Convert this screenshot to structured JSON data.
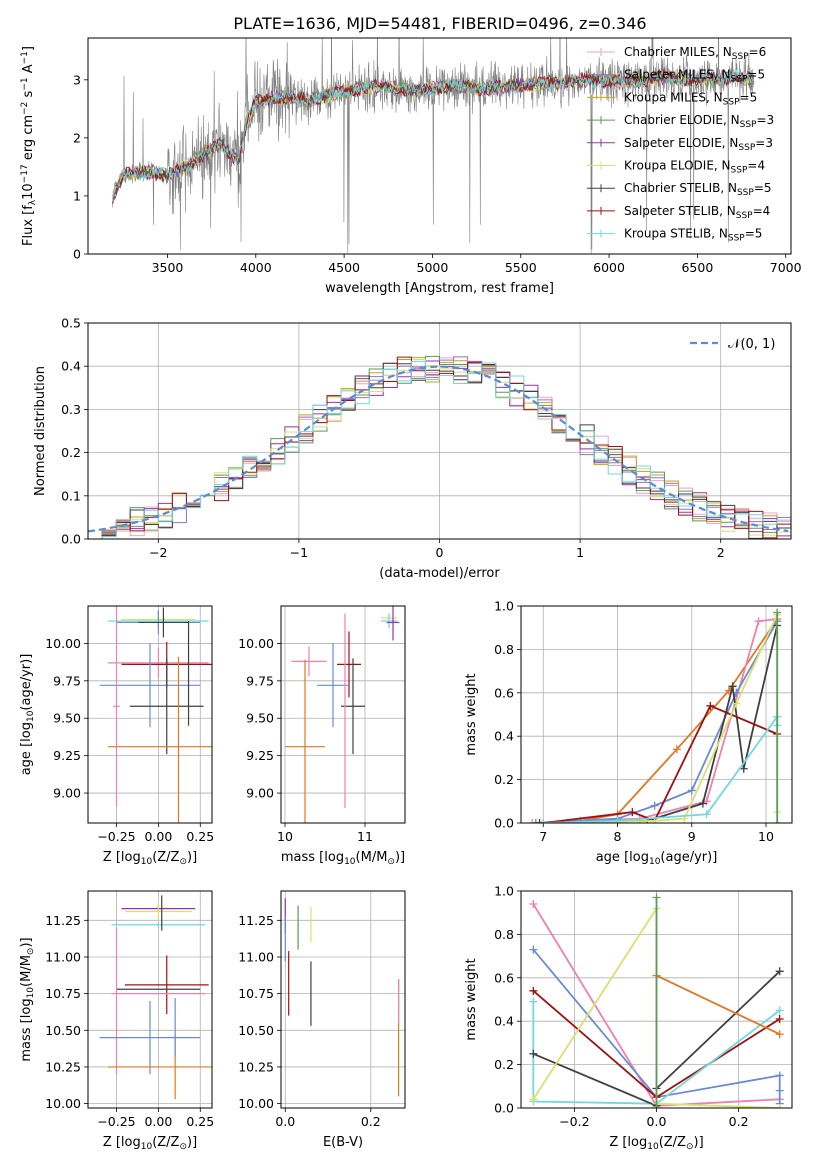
{
  "figure": {
    "title": "PLATE=1636, MJD=54481, FIBERID=0496, z=0.346"
  },
  "legend_spectrum": [
    {
      "label": "Chabrier MILES, N",
      "sub": "SSP",
      "suffix": "=6",
      "color": "#f0a0c8"
    },
    {
      "label": "Salpeter MILES, N",
      "sub": "SSP",
      "suffix": "=5",
      "color": "#9b6fbf"
    },
    {
      "label": "Kroupa MILES, N",
      "sub": "SSP",
      "suffix": "=5",
      "color": "#c8a020"
    },
    {
      "label": "Chabrier ELODIE, N",
      "sub": "SSP",
      "suffix": "=3",
      "color": "#5a9a5a"
    },
    {
      "label": "Salpeter ELODIE, N",
      "sub": "SSP",
      "suffix": "=3",
      "color": "#9a30b0"
    },
    {
      "label": "Kroupa ELODIE, N",
      "sub": "SSP",
      "suffix": "=4",
      "color": "#d8e070"
    },
    {
      "label": "Chabrier STELIB, N",
      "sub": "SSP",
      "suffix": "=5",
      "color": "#404040"
    },
    {
      "label": "Salpeter STELIB, N",
      "sub": "SSP",
      "suffix": "=4",
      "color": "#a01010"
    },
    {
      "label": "Kroupa STELIB, N",
      "sub": "SSP",
      "suffix": "=5",
      "color": "#70d8e0"
    }
  ],
  "legend_hist": {
    "label": "𝒩(0, 1)",
    "color": "#5b8ad8"
  },
  "chart_data": [
    {
      "id": "spectrum",
      "type": "line",
      "xlabel": "wavelength [Angstrom, rest frame]",
      "ylabel_main": "Flux [f",
      "ylabel_sub": "λ",
      "ylabel_rest": "10",
      "ylabel_sup": "−17",
      "ylabel_tail": " erg cm",
      "ylabel_sup2": "−2",
      "ylabel_tail2": " s",
      "ylabel_sup3": "−1",
      "ylabel_tail3": " A",
      "ylabel_sup4": "−1",
      "ylabel_end": "]",
      "xlim": [
        3050,
        7030
      ],
      "ylim": [
        0,
        3.72
      ],
      "xticks": [
        "3500",
        "4000",
        "4500",
        "5000",
        "5500",
        "6000",
        "6500",
        "7000"
      ],
      "xtick_values": [
        3500,
        4000,
        4500,
        5000,
        5500,
        6000,
        6500,
        7000
      ],
      "yticks": [
        "0",
        "1",
        "2",
        "3"
      ],
      "ytick_values": [
        0,
        1,
        2,
        3
      ],
      "data_range": [
        3190,
        6820
      ],
      "continuum": [
        [
          3190,
          1.0
        ],
        [
          3250,
          1.35
        ],
        [
          3300,
          1.38
        ],
        [
          3400,
          1.42
        ],
        [
          3500,
          1.35
        ],
        [
          3600,
          1.5
        ],
        [
          3700,
          1.7
        ],
        [
          3800,
          1.9
        ],
        [
          3900,
          1.6
        ],
        [
          3950,
          2.3
        ],
        [
          4000,
          2.6
        ],
        [
          4100,
          2.7
        ],
        [
          4300,
          2.65
        ],
        [
          4500,
          2.8
        ],
        [
          4700,
          2.9
        ],
        [
          4900,
          2.8
        ],
        [
          5100,
          2.9
        ],
        [
          5300,
          2.85
        ],
        [
          5500,
          2.9
        ],
        [
          5700,
          2.95
        ],
        [
          5900,
          3.0
        ],
        [
          6100,
          2.95
        ],
        [
          6300,
          3.05
        ],
        [
          6500,
          3.0
        ],
        [
          6700,
          3.05
        ],
        [
          6820,
          3.0
        ]
      ]
    },
    {
      "id": "residuals",
      "type": "bar",
      "xlabel": "(data-model)/error",
      "ylabel": "Normed distribution",
      "xlim": [
        -2.5,
        2.5
      ],
      "ylim": [
        0,
        0.5
      ],
      "xticks": [
        "−2",
        "−1",
        "0",
        "1",
        "2"
      ],
      "xtick_values": [
        -2,
        -1,
        0,
        1,
        2
      ],
      "yticks": [
        "0.0",
        "0.1",
        "0.2",
        "0.3",
        "0.4",
        "0.5"
      ],
      "ytick_values": [
        0,
        0.1,
        0.2,
        0.3,
        0.4,
        0.5
      ],
      "bin_width": 0.1,
      "gaussian": {
        "mu": 0,
        "sigma": 1
      }
    },
    {
      "id": "age-Z",
      "type": "scatter",
      "xlabel": "Z [log",
      "xlabel_sub": "10",
      "xlabel_rest": "(Z/Z",
      "xlabel_sub2": "⊙",
      "xlabel_end": ")]",
      "ylabel": "age  [log",
      "ylabel_sub": "10",
      "ylabel_rest": "(age/yr)]",
      "xlim": [
        -0.42,
        0.32
      ],
      "ylim": [
        8.8,
        10.25
      ],
      "xticks": [
        "−0.25",
        "0.00",
        "0.25"
      ],
      "xtick_values": [
        -0.25,
        0,
        0.25
      ],
      "yticks": [
        "9.00",
        "9.25",
        "9.50",
        "9.75",
        "10.00"
      ],
      "ytick_values": [
        9,
        9.25,
        9.5,
        9.75,
        10
      ],
      "points": [
        {
          "x": 0.0,
          "y": 10.15,
          "xerr": 0.3,
          "yerr": 0.05,
          "color": "#70d8e0"
        },
        {
          "x": 0.0,
          "y": 10.16,
          "xerr": 0.22,
          "yerr": 0.05,
          "color": "#d8e070"
        },
        {
          "x": 0.0,
          "y": 10.14,
          "xerr": 0.25,
          "yerr": 0.08,
          "color": "#6a8ad8"
        },
        {
          "x": 0.03,
          "y": 10.14,
          "xerr": 0.15,
          "yerr": 0.1,
          "color": "#404040"
        },
        {
          "x": 0.0,
          "y": 9.87,
          "xerr": 0.3,
          "yerr": 0.1,
          "color": "#f080b0"
        },
        {
          "x": 0.05,
          "y": 9.86,
          "xerr": 0.27,
          "yerr": 0.15,
          "color": "#a01010"
        },
        {
          "x": -0.05,
          "y": 9.72,
          "xerr": 0.3,
          "yerr": 0.28,
          "color": "#6a8ad8"
        },
        {
          "x": 0.05,
          "y": 9.58,
          "xerr": 0.22,
          "yerr": 0.32,
          "color": "#404040"
        },
        {
          "x": 0.12,
          "y": 9.31,
          "xerr": 0.42,
          "yerr": 0.6,
          "color": "#e07820"
        },
        {
          "x": -0.25,
          "y": 9.58,
          "xerr": 0.02,
          "yerr": 0.67,
          "color": "#f080b0"
        },
        {
          "x": 0.18,
          "y": 9.8,
          "xerr": 0.0,
          "yerr": 0.35,
          "color": "#404040"
        }
      ]
    },
    {
      "id": "age-mass",
      "type": "scatter",
      "xlabel": "mass [log",
      "xlabel_sub": "10",
      "xlabel_rest": "(M/M",
      "xlabel_sub2": "⊙",
      "xlabel_end": ")]",
      "xlim": [
        9.95,
        11.5
      ],
      "ylim": [
        8.8,
        10.25
      ],
      "xticks": [
        "10",
        "11"
      ],
      "xtick_values": [
        10,
        11
      ],
      "yticks": [
        "9.00",
        "9.25",
        "9.50",
        "9.75",
        "10.00"
      ],
      "ytick_values": [
        9,
        9.25,
        9.5,
        9.75,
        10
      ],
      "points": [
        {
          "x": 11.3,
          "y": 10.17,
          "xerr": 0.1,
          "yerr": 0.03,
          "color": "#d8e070"
        },
        {
          "x": 11.3,
          "y": 10.15,
          "xerr": 0.1,
          "yerr": 0.05,
          "color": "#70d8e0"
        },
        {
          "x": 11.35,
          "y": 10.14,
          "xerr": 0.08,
          "yerr": 0.12,
          "color": "#9a30b0"
        },
        {
          "x": 10.3,
          "y": 9.88,
          "xerr": 0.22,
          "yerr": 0.1,
          "color": "#f080b0"
        },
        {
          "x": 10.8,
          "y": 9.86,
          "xerr": 0.15,
          "yerr": 0.22,
          "color": "#a01010"
        },
        {
          "x": 10.6,
          "y": 9.72,
          "xerr": 0.2,
          "yerr": 0.28,
          "color": "#6a8ad8"
        },
        {
          "x": 10.85,
          "y": 9.58,
          "xerr": 0.15,
          "yerr": 0.32,
          "color": "#404040"
        },
        {
          "x": 10.25,
          "y": 9.31,
          "xerr": 0.25,
          "yerr": 0.58,
          "color": "#e07820"
        },
        {
          "x": 10.75,
          "y": 9.55,
          "xerr": 0.0,
          "yerr": 0.65,
          "color": "#f080b0"
        }
      ]
    },
    {
      "id": "weight-age",
      "type": "line",
      "xlabel": "age  [log",
      "xlabel_sub": "10",
      "xlabel_rest": "(age/yr)]",
      "ylabel": "mass weight",
      "xlim": [
        6.7,
        10.35
      ],
      "ylim": [
        0,
        1.0
      ],
      "xticks": [
        "7",
        "8",
        "9",
        "10"
      ],
      "xtick_values": [
        7,
        8,
        9,
        10
      ],
      "yticks": [
        "0.0",
        "0.2",
        "0.4",
        "0.6",
        "0.8",
        "1.0"
      ],
      "ytick_values": [
        0,
        0.2,
        0.4,
        0.6,
        0.8,
        1.0
      ],
      "series": [
        {
          "color": "#e07820",
          "x": [
            6.9,
            7.5,
            8.0,
            8.8,
            9.5,
            10.15
          ],
          "y": [
            0.0,
            0.01,
            0.04,
            0.34,
            0.61,
            0.94
          ]
        },
        {
          "color": "#f080b0",
          "x": [
            6.85,
            7.5,
            8.3,
            9.2,
            9.9,
            10.15
          ],
          "y": [
            0.0,
            0.01,
            0.02,
            0.1,
            0.93,
            0.94
          ]
        },
        {
          "color": "#6a8ad8",
          "x": [
            6.9,
            8.0,
            8.5,
            9.0,
            9.6,
            10.15
          ],
          "y": [
            0.0,
            0.02,
            0.08,
            0.15,
            0.6,
            0.93
          ]
        },
        {
          "color": "#404040",
          "x": [
            6.95,
            8.4,
            9.15,
            9.55,
            9.7,
            10.15
          ],
          "y": [
            0.0,
            0.01,
            0.09,
            0.63,
            0.25,
            0.91
          ]
        },
        {
          "color": "#a01010",
          "x": [
            7.0,
            8.2,
            8.5,
            9.25,
            10.15
          ],
          "y": [
            0.0,
            0.05,
            0.01,
            0.54,
            0.41
          ]
        },
        {
          "color": "#d8e070",
          "x": [
            7.0,
            8.5,
            8.9,
            9.6,
            10.15,
            10.15
          ],
          "y": [
            0.0,
            0.01,
            0.02,
            0.55,
            0.96,
            0.05
          ]
        },
        {
          "color": "#70d8e0",
          "x": [
            7.0,
            8.0,
            9.2,
            10.15,
            10.15
          ],
          "y": [
            0.0,
            0.01,
            0.04,
            0.49,
            0.45
          ]
        },
        {
          "color": "#5a9a5a",
          "x": [
            10.15,
            10.15
          ],
          "y": [
            0.0,
            0.97
          ]
        }
      ]
    },
    {
      "id": "mass-Z",
      "type": "scatter",
      "xlabel": "Z [log",
      "xlabel_sub": "10",
      "xlabel_rest": "(Z/Z",
      "xlabel_sub2": "⊙",
      "xlabel_end": ")]",
      "ylabel": "mass [log",
      "ylabel_sub": "10",
      "ylabel_rest": "(M/M",
      "ylabel_sub2": "⊙",
      "ylabel_end": ")]",
      "xlim": [
        -0.42,
        0.32
      ],
      "ylim": [
        9.97,
        11.45
      ],
      "xticks": [
        "−0.25",
        "0.00",
        "0.25"
      ],
      "xtick_values": [
        -0.25,
        0,
        0.25
      ],
      "yticks": [
        "10.00",
        "10.25",
        "10.50",
        "10.75",
        "11.00",
        "11.25"
      ],
      "ytick_values": [
        10,
        10.25,
        10.5,
        10.75,
        11,
        11.25
      ],
      "points": [
        {
          "x": 0.0,
          "y": 11.33,
          "xerr": 0.22,
          "yerr": 0.02,
          "color": "#9a30b0"
        },
        {
          "x": 0.0,
          "y": 11.31,
          "xerr": 0.2,
          "yerr": 0.08,
          "color": "#d8e070"
        },
        {
          "x": 0.0,
          "y": 11.22,
          "xerr": 0.28,
          "yerr": 0.02,
          "color": "#70d8e0"
        },
        {
          "x": 0.02,
          "y": 11.3,
          "xerr": 0.0,
          "yerr": 0.12,
          "color": "#404040"
        },
        {
          "x": 0.05,
          "y": 10.81,
          "xerr": 0.25,
          "yerr": 0.2,
          "color": "#a01010"
        },
        {
          "x": 0.0,
          "y": 10.78,
          "xerr": 0.25,
          "yerr": 0.0,
          "color": "#404040"
        },
        {
          "x": 0.0,
          "y": 10.75,
          "xerr": 0.28,
          "yerr": 0.0,
          "color": "#f080b0"
        },
        {
          "x": -0.25,
          "y": 10.7,
          "xerr": 0.0,
          "yerr": 0.5,
          "color": "#f080b0"
        },
        {
          "x": -0.05,
          "y": 10.45,
          "xerr": 0.3,
          "yerr": 0.25,
          "color": "#6a8ad8"
        },
        {
          "x": 0.1,
          "y": 10.25,
          "xerr": 0.4,
          "yerr": 0.22,
          "color": "#e07820"
        },
        {
          "x": 0.1,
          "y": 10.52,
          "xerr": 0.0,
          "yerr": 0.2,
          "color": "#6a8ad8"
        }
      ]
    },
    {
      "id": "mass-EBV",
      "type": "scatter",
      "xlabel": "E(B-V)",
      "xlim": [
        -0.01,
        0.28
      ],
      "ylim": [
        9.97,
        11.45
      ],
      "xticks": [
        "0.0",
        "0.2"
      ],
      "xtick_values": [
        0,
        0.2
      ],
      "yticks": [
        "10.00",
        "10.25",
        "10.50",
        "10.75",
        "11.00",
        "11.25"
      ],
      "ytick_values": [
        10,
        10.25,
        10.5,
        10.75,
        11,
        11.25
      ],
      "points": [
        {
          "x": 0.0,
          "y": 11.28,
          "xerr": 0,
          "yerr": 0.12,
          "color": "#9a30b0"
        },
        {
          "x": 0.0,
          "y": 11.12,
          "xerr": 0,
          "yerr": 0.15,
          "color": "#6a8ad8"
        },
        {
          "x": 0.008,
          "y": 10.82,
          "xerr": 0,
          "yerr": 0.22,
          "color": "#a01010"
        },
        {
          "x": 0.03,
          "y": 11.2,
          "xerr": 0,
          "yerr": 0.15,
          "color": "#5a9a5a"
        },
        {
          "x": 0.06,
          "y": 11.22,
          "xerr": 0,
          "yerr": 0.12,
          "color": "#d8e070"
        },
        {
          "x": 0.06,
          "y": 10.75,
          "xerr": 0,
          "yerr": 0.22,
          "color": "#404040"
        },
        {
          "x": 0.265,
          "y": 10.45,
          "xerr": 0,
          "yerr": 0.4,
          "color": "#e07820"
        },
        {
          "x": 0.265,
          "y": 10.7,
          "xerr": 0,
          "yerr": 0.15,
          "color": "#f080b0"
        }
      ]
    },
    {
      "id": "weight-Z",
      "type": "line",
      "xlabel": "Z [log",
      "xlabel_sub": "10",
      "xlabel_rest": "(Z/Z",
      "xlabel_sub2": "⊙",
      "xlabel_end": ")]",
      "ylabel": "mass weight",
      "xlim": [
        -0.33,
        0.33
      ],
      "ylim": [
        0,
        1.0
      ],
      "xticks": [
        "−0.2",
        "0.0",
        "0.2"
      ],
      "xtick_values": [
        -0.2,
        0,
        0.2
      ],
      "yticks": [
        "0.0",
        "0.2",
        "0.4",
        "0.6",
        "0.8",
        "1.0"
      ],
      "ytick_values": [
        0,
        0.2,
        0.4,
        0.6,
        0.8,
        1.0
      ],
      "series": [
        {
          "color": "#f080b0",
          "x": [
            -0.3,
            0.0,
            0.3
          ],
          "y": [
            0.94,
            0.01,
            0.04
          ]
        },
        {
          "color": "#6a8ad8",
          "x": [
            -0.3,
            0.0,
            0.3,
            0.3,
            0.3
          ],
          "y": [
            0.73,
            0.05,
            0.15,
            0.08,
            0.02
          ]
        },
        {
          "color": "#a01010",
          "x": [
            -0.3,
            0.0,
            0.3
          ],
          "y": [
            0.54,
            0.05,
            0.41
          ]
        },
        {
          "color": "#70d8e0",
          "x": [
            -0.3,
            -0.3,
            0.0,
            0.3
          ],
          "y": [
            0.49,
            0.03,
            0.02,
            0.45
          ]
        },
        {
          "color": "#404040",
          "x": [
            -0.3,
            0.0,
            0.0,
            0.3
          ],
          "y": [
            0.25,
            0.01,
            0.09,
            0.63
          ]
        },
        {
          "color": "#d8e070",
          "x": [
            -0.3,
            0.0,
            0.0,
            0.3
          ],
          "y": [
            0.04,
            0.92,
            0.02,
            0.0
          ]
        },
        {
          "color": "#e07820",
          "x": [
            0.0,
            0.3
          ],
          "y": [
            0.61,
            0.34
          ]
        },
        {
          "color": "#5a9a5a",
          "x": [
            0.0,
            0.0
          ],
          "y": [
            0.97,
            0.0
          ]
        }
      ]
    }
  ]
}
